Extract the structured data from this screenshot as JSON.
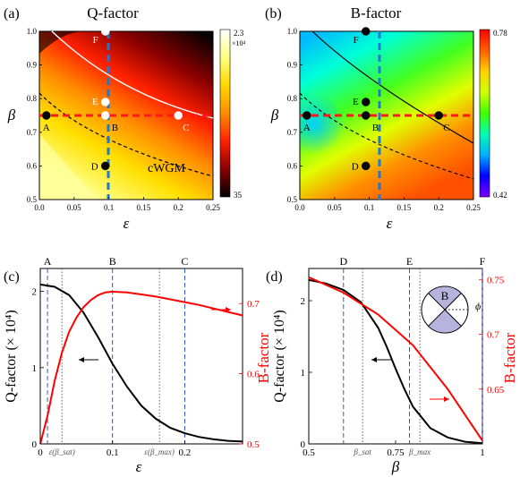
{
  "chart_data": [
    {
      "panel": "(a)",
      "type": "heatmap",
      "title": "Q-factor",
      "xlabel": "ε",
      "ylabel": "β",
      "xlim": [
        0,
        0.25
      ],
      "ylim": [
        0.5,
        1.0
      ],
      "xticks": [
        "0.0",
        "0.05",
        "0.1",
        "0.15",
        "0.2",
        "0.25"
      ],
      "yticks": [
        "0.5",
        "0.6",
        "0.7",
        "0.8",
        "0.9",
        "1.0"
      ],
      "colorbar": {
        "max_label": "2.3",
        "exp_label": "×10⁴",
        "min_label": "35",
        "colors": [
          "#000000",
          "#8b0000",
          "#ff2000",
          "#ff8c00",
          "#ffd800",
          "#ffff80",
          "#ffffff"
        ]
      },
      "region_label": "cWGM",
      "points": [
        {
          "label": "A",
          "x": 0.01,
          "y": 0.75,
          "color": "#000000"
        },
        {
          "label": "B",
          "x": 0.095,
          "y": 0.75,
          "color": "#ffffff"
        },
        {
          "label": "C",
          "x": 0.2,
          "y": 0.75,
          "color": "#ffffff"
        },
        {
          "label": "D",
          "x": 0.095,
          "y": 0.6,
          "color": "#000000"
        },
        {
          "label": "E",
          "x": 0.095,
          "y": 0.79,
          "color": "#ffffff"
        },
        {
          "label": "F",
          "x": 0.095,
          "y": 1.0,
          "color": "#ffffff"
        }
      ]
    },
    {
      "panel": "(b)",
      "type": "heatmap",
      "title": "B-factor",
      "xlabel": "ε",
      "ylabel": "β",
      "xlim": [
        0,
        0.25
      ],
      "ylim": [
        0.5,
        1.0
      ],
      "xticks": [
        "0.0",
        "0.05",
        "0.1",
        "0.15",
        "0.2",
        "0.25"
      ],
      "yticks": [
        "0.5",
        "0.6",
        "0.7",
        "0.8",
        "0.9",
        "1.0"
      ],
      "colorbar": {
        "max_label": "0.78",
        "min_label": "0.42",
        "colors": [
          "#7a00ff",
          "#0000ff",
          "#00b0ff",
          "#00ffb0",
          "#40ff00",
          "#d0ff00",
          "#ffd000",
          "#ff6000",
          "#ff0000"
        ]
      },
      "points": [
        {
          "label": "A",
          "x": 0.01,
          "y": 0.75
        },
        {
          "label": "B",
          "x": 0.095,
          "y": 0.75
        },
        {
          "label": "C",
          "x": 0.2,
          "y": 0.75
        },
        {
          "label": "D",
          "x": 0.095,
          "y": 0.6
        },
        {
          "label": "E",
          "x": 0.095,
          "y": 0.79
        },
        {
          "label": "F",
          "x": 0.095,
          "y": 1.0
        }
      ]
    },
    {
      "panel": "(c)",
      "type": "line",
      "xlabel": "ε",
      "ylabel": "Q-factor (× 10⁴)",
      "y2label": "B-factor",
      "xlim": [
        0,
        0.28
      ],
      "ylim": [
        0,
        2.3
      ],
      "y2lim": [
        0.5,
        0.75
      ],
      "xticks": [
        0,
        0.1,
        0.2
      ],
      "xtick_labels": [
        "0",
        "0.1",
        "0.2"
      ],
      "yticks": [
        0,
        1,
        2
      ],
      "y2ticks": [
        0.5,
        0.6,
        0.7
      ],
      "y2tick_labels": [
        "0.5",
        "0.6",
        "0.7"
      ],
      "top_labels": [
        {
          "label": "A",
          "x": 0.01
        },
        {
          "label": "B",
          "x": 0.1
        },
        {
          "label": "C",
          "x": 0.2
        }
      ],
      "dotted_labels": [
        {
          "label": "ε(β_sat)",
          "x": 0.03
        },
        {
          "label": "ε(β_max)",
          "x": 0.165
        }
      ],
      "series": [
        {
          "axis": "left",
          "color": "#000000",
          "x": [
            0,
            0.02,
            0.04,
            0.06,
            0.08,
            0.1,
            0.12,
            0.14,
            0.16,
            0.18,
            0.2,
            0.22,
            0.24,
            0.26,
            0.28
          ],
          "values": [
            2.09,
            2.06,
            1.95,
            1.72,
            1.4,
            1.05,
            0.75,
            0.5,
            0.33,
            0.21,
            0.14,
            0.09,
            0.06,
            0.04,
            0.03
          ]
        },
        {
          "axis": "right",
          "color": "#ff0000",
          "x": [
            0,
            0.01,
            0.02,
            0.03,
            0.04,
            0.05,
            0.06,
            0.07,
            0.08,
            0.09,
            0.1,
            0.12,
            0.14,
            0.16,
            0.18,
            0.2,
            0.22,
            0.24,
            0.26,
            0.28
          ],
          "values": [
            0.5,
            0.54,
            0.59,
            0.63,
            0.66,
            0.68,
            0.695,
            0.705,
            0.712,
            0.716,
            0.717,
            0.716,
            0.713,
            0.71,
            0.706,
            0.702,
            0.698,
            0.693,
            0.688,
            0.683
          ]
        }
      ]
    },
    {
      "panel": "(d)",
      "type": "line",
      "xlabel": "β",
      "ylabel": "Q-factor (× 10⁴)",
      "y2label": "B-factor",
      "xlim": [
        0.5,
        1.0
      ],
      "ylim": [
        0,
        2.45
      ],
      "y2lim": [
        0.6,
        0.76
      ],
      "xticks": [
        0.5,
        0.75,
        1.0
      ],
      "xtick_labels": [
        "0.5",
        "0.75",
        "1"
      ],
      "yticks": [
        0,
        1,
        2
      ],
      "y2ticks": [
        0.65,
        0.7,
        0.75
      ],
      "y2tick_labels": [
        "0.65",
        "0.7",
        "0.75"
      ],
      "top_labels": [
        {
          "label": "D",
          "x": 0.6
        },
        {
          "label": "E",
          "x": 0.79
        },
        {
          "label": "F",
          "x": 1.0
        }
      ],
      "dotted_labels": [
        {
          "label": "β_sat",
          "x": 0.655
        },
        {
          "label": "β_max",
          "x": 0.82
        }
      ],
      "inset_label": "B",
      "inset_angle_label": "ϕ",
      "series": [
        {
          "axis": "left",
          "color": "#000000",
          "x": [
            0.5,
            0.55,
            0.6,
            0.65,
            0.7,
            0.725,
            0.75,
            0.775,
            0.8,
            0.85,
            0.9,
            0.95,
            1.0
          ],
          "values": [
            2.29,
            2.24,
            2.15,
            1.98,
            1.62,
            1.35,
            1.05,
            0.77,
            0.52,
            0.22,
            0.09,
            0.03,
            0.01
          ]
        },
        {
          "axis": "right",
          "color": "#ff0000",
          "x": [
            0.5,
            0.6,
            0.7,
            0.8,
            0.9,
            1.0
          ],
          "values": [
            0.752,
            0.738,
            0.718,
            0.69,
            0.65,
            0.603
          ]
        }
      ]
    }
  ]
}
